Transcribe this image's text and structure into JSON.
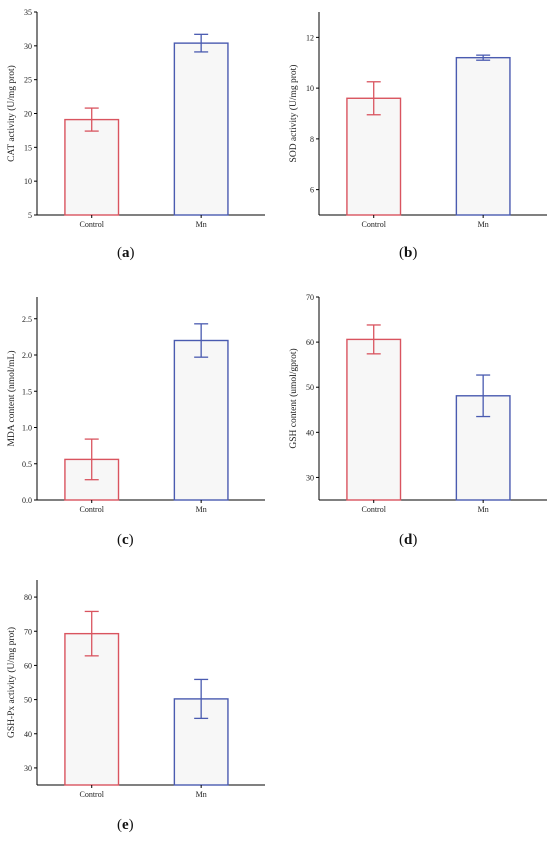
{
  "chart_data": [
    {
      "type": "bar",
      "panel": "a",
      "categories": [
        "Control",
        "Mn"
      ],
      "values": [
        19.1,
        30.4
      ],
      "errors": [
        1.7,
        1.3
      ],
      "ylabel": "CAT activity (U/mg prot)",
      "ylim": [
        5,
        35
      ],
      "yticks": [
        5,
        10,
        15,
        20,
        25,
        30,
        35
      ],
      "tick_format": "0",
      "bar_colors": [
        "#d9545f",
        "#4a5bb0"
      ],
      "bar_fill": "#f7f7f7"
    },
    {
      "type": "bar",
      "panel": "b",
      "categories": [
        "Control",
        "Mn"
      ],
      "values": [
        9.6,
        11.2
      ],
      "errors": [
        0.65,
        0.1
      ],
      "ylabel": "SOD activity (U/mg prot)",
      "ylim": [
        5,
        13
      ],
      "yticks": [
        6,
        8,
        10,
        12
      ],
      "tick_format": "0",
      "bar_colors": [
        "#d9545f",
        "#4a5bb0"
      ],
      "bar_fill": "#f7f7f7"
    },
    {
      "type": "bar",
      "panel": "c",
      "categories": [
        "Control",
        "Mn"
      ],
      "values": [
        0.56,
        2.2
      ],
      "errors": [
        0.28,
        0.23
      ],
      "ylabel": "MDA content (nmol/mL)",
      "ylim": [
        0,
        2.8
      ],
      "yticks": [
        0.0,
        0.5,
        1.0,
        1.5,
        2.0,
        2.5
      ],
      "tick_format": "1",
      "bar_colors": [
        "#d9545f",
        "#4a5bb0"
      ],
      "bar_fill": "#f7f7f7"
    },
    {
      "type": "bar",
      "panel": "d",
      "categories": [
        "Control",
        "Mn"
      ],
      "values": [
        60.6,
        48.1
      ],
      "errors": [
        3.2,
        4.6
      ],
      "ylabel": "GSH content (umol/gprot)",
      "ylim": [
        25,
        70
      ],
      "yticks": [
        30,
        40,
        50,
        60,
        70
      ],
      "tick_format": "0",
      "bar_colors": [
        "#d9545f",
        "#4a5bb0"
      ],
      "bar_fill": "#f7f7f7"
    },
    {
      "type": "bar",
      "panel": "e",
      "categories": [
        "Control",
        "Mn"
      ],
      "values": [
        69.3,
        50.2
      ],
      "errors": [
        6.5,
        5.7
      ],
      "ylabel": "GSH-Px activity (U/mg prot)",
      "ylim": [
        25,
        85
      ],
      "yticks": [
        30,
        40,
        50,
        60,
        70,
        80
      ],
      "tick_format": "0",
      "bar_colors": [
        "#d9545f",
        "#4a5bb0"
      ],
      "bar_fill": "#f7f7f7"
    }
  ],
  "panel_labels": {
    "a": {
      "open": "(",
      "letter": "a",
      "close": ")"
    },
    "b": {
      "open": "(",
      "letter": "b",
      "close": ")"
    },
    "c": {
      "open": "(",
      "letter": "c",
      "close": ")"
    },
    "d": {
      "open": "(",
      "letter": "d",
      "close": ")"
    },
    "e": {
      "open": "(",
      "letter": "e",
      "close": ")"
    }
  }
}
